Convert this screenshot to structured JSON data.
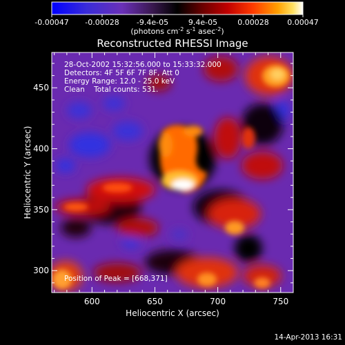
{
  "colorbar": {
    "ticks": [
      "-0.00047",
      "-0.00028",
      "-9.4e-05",
      "9.4e-05",
      "0.00028",
      "0.00047"
    ],
    "units_text": "(photons cm",
    "units_exp1": "-2",
    "units_mid": " s",
    "units_exp2": "-1",
    "units_end": " asec",
    "units_exp3": "-2",
    "units_close": ")",
    "min": -0.00047,
    "max": 0.00047
  },
  "chart_data": {
    "type": "heatmap",
    "title": "Reconstructed RHESSI Image",
    "xlabel": "Heliocentric X (arcsec)",
    "ylabel": "Heliocentric Y (arcsec)",
    "xlim": [
      568,
      760
    ],
    "ylim": [
      282,
      479
    ],
    "xticks": [
      "600",
      "650",
      "700",
      "750"
    ],
    "xtick_values": [
      600,
      650,
      700,
      750
    ],
    "yticks": [
      "300",
      "350",
      "400",
      "450"
    ],
    "ytick_values": [
      300,
      350,
      400,
      450
    ],
    "peak_position": [
      668,
      371
    ],
    "colormap": [
      "#0000ff",
      "#2020ff",
      "#5a2fb0",
      "#8020a0",
      "#000000",
      "#6a0000",
      "#c80000",
      "#ff4000",
      "#ff9000",
      "#ffd020",
      "#ffffff"
    ]
  },
  "annotations": {
    "time_range": "28-Oct-2002 15:32:56.000 to 15:33:32.000",
    "detectors": "Detectors: 4F 5F 6F 7F 8F, Att 0",
    "energy": "Energy Range: 12.0 - 25.0 keV",
    "clean": "Clean    Total counts: 531.",
    "peak": "Position of Peak = [668,371]"
  },
  "footer": {
    "date": "14-Apr-2013 16:31"
  }
}
